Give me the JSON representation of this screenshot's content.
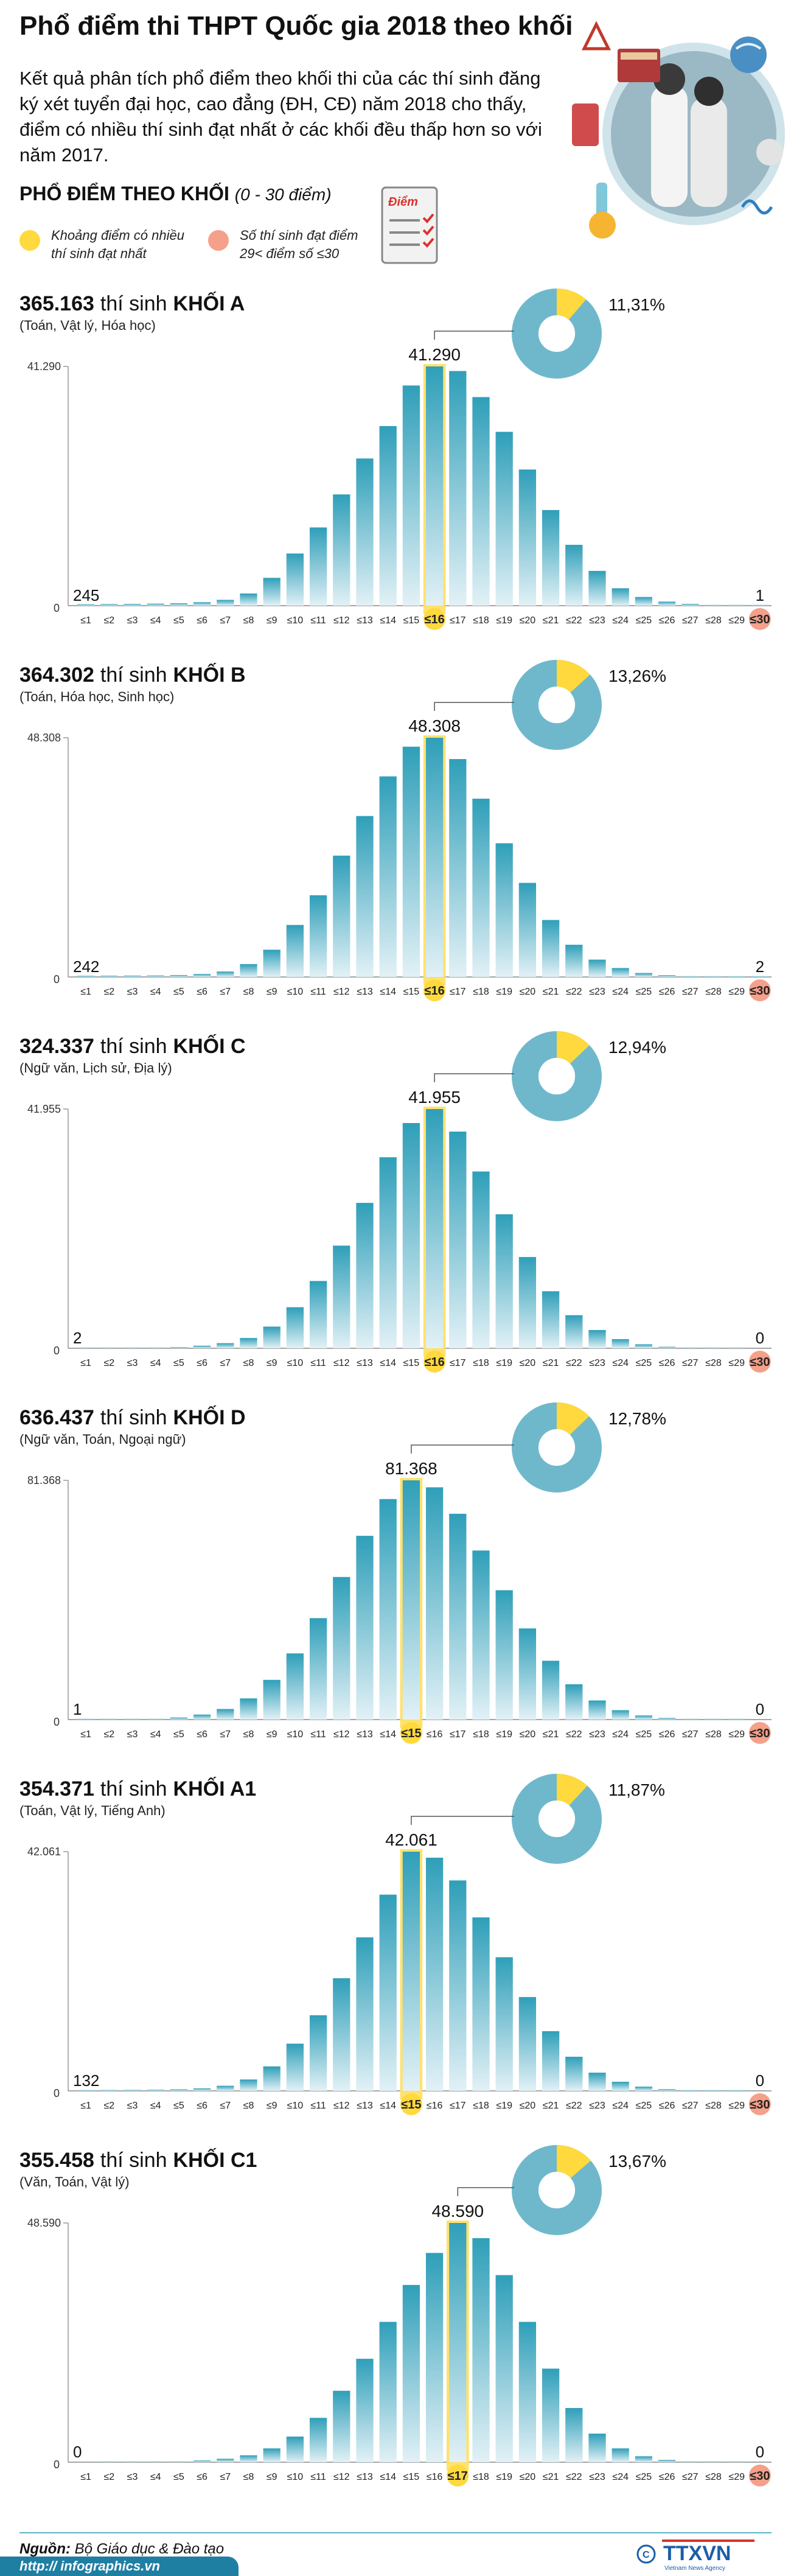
{
  "header": {
    "title": "Phổ điểm thi THPT Quốc gia 2018 theo khối",
    "intro": "Kết quả phân tích phổ điểm theo khối thi của các thí sinh đăng ký xét tuyển đại học, cao đẳng (ĐH, CĐ) năm 2018 cho thấy, điểm có nhiều thí sinh đạt nhất ở các khối đều thấp hơn so với năm 2017.",
    "section_title": "PHỔ ĐIỂM THEO KHỐI",
    "section_range": "(0 - 30 điểm)",
    "doc_icon_label": "Điểm",
    "legend": [
      {
        "label_line1": "Khoảng điểm có nhiều",
        "label_line2": "thí sinh đạt nhất",
        "color": "#ffd93d"
      },
      {
        "label_line1": "Số thí sinh đạt điểm",
        "label_line2": "29< điểm số ≤30",
        "color": "#f4a08a"
      }
    ]
  },
  "colors": {
    "bar_gradient_top": "#2f9fb9",
    "bar_gradient_bottom": "#e2f1f6",
    "highlight": "#ffe066",
    "highlight_dot": "#ffd93d",
    "end_dot": "#f4a08a",
    "donut": "#6fb8cc",
    "donut_slice": "#ffd93d"
  },
  "x_labels": [
    "≤1",
    "≤2",
    "≤3",
    "≤4",
    "≤5",
    "≤6",
    "≤7",
    "≤8",
    "≤9",
    "≤10",
    "≤11",
    "≤12",
    "≤13",
    "≤14",
    "≤15",
    "≤16",
    "≤17",
    "≤18",
    "≤19",
    "≤20",
    "≤21",
    "≤22",
    "≤23",
    "≤24",
    "≤25",
    "≤26",
    "≤27",
    "≤28",
    "≤29",
    "≤30"
  ],
  "chart_data": [
    {
      "type": "bar",
      "total_label": "365.163",
      "total_suffix": "thí sinh",
      "block": "KHỐI A",
      "subjects": "(Toán, Vật lý, Hóa học)",
      "peak_label": "41.290",
      "y_max_label": "41.290",
      "y_min_label": "0",
      "first_label": "245",
      "last_label": "1",
      "share_label": "11,31%",
      "share_value": 0.1131,
      "peak_index": 15,
      "ylim": [
        0,
        41290
      ],
      "values": [
        245,
        280,
        300,
        350,
        420,
        600,
        1000,
        2100,
        4800,
        9000,
        13500,
        19200,
        25400,
        31000,
        38000,
        41290,
        40500,
        36000,
        30000,
        23500,
        16500,
        10500,
        6000,
        3000,
        1500,
        700,
        300,
        120,
        40,
        1
      ]
    },
    {
      "type": "bar",
      "total_label": "364.302",
      "total_suffix": "thí sinh",
      "block": "KHỐI B",
      "subjects": "(Toán, Hóa học, Sinh học)",
      "peak_label": "48.308",
      "y_max_label": "48.308",
      "y_min_label": "0",
      "first_label": "242",
      "last_label": "2",
      "share_label": "13,26%",
      "share_value": 0.1326,
      "peak_index": 15,
      "ylim": [
        0,
        48308
      ],
      "values": [
        242,
        260,
        280,
        300,
        380,
        600,
        1100,
        2600,
        5500,
        10500,
        16500,
        24500,
        32500,
        40500,
        46500,
        48308,
        44000,
        36000,
        27000,
        19000,
        11500,
        6500,
        3500,
        1800,
        800,
        350,
        150,
        60,
        20,
        2
      ]
    },
    {
      "type": "bar",
      "total_label": "324.337",
      "total_suffix": "thí sinh",
      "block": "KHỐI C",
      "subjects": "(Ngữ văn, Lịch sử, Địa lý)",
      "peak_label": "41.955",
      "y_max_label": "41.955",
      "y_min_label": "0",
      "first_label": "2",
      "last_label": "0",
      "share_label": "12,94%",
      "share_value": 0.1294,
      "peak_index": 15,
      "ylim": [
        0,
        41955
      ],
      "values": [
        2,
        10,
        30,
        80,
        200,
        450,
        900,
        1800,
        3800,
        7200,
        11800,
        18000,
        25500,
        33500,
        39500,
        41955,
        38000,
        31000,
        23500,
        16000,
        10000,
        5800,
        3200,
        1600,
        700,
        260,
        90,
        30,
        8,
        0
      ]
    },
    {
      "type": "bar",
      "total_label": "636.437",
      "total_suffix": "thí sinh",
      "block": "KHỐI D",
      "subjects": "(Ngữ văn, Toán, Ngoại ngữ)",
      "peak_label": "81.368",
      "y_max_label": "81.368",
      "y_min_label": "0",
      "first_label": "1",
      "last_label": "0",
      "share_label": "12,78%",
      "share_value": 0.1278,
      "peak_index": 14,
      "ylim": [
        0,
        81368
      ],
      "values": [
        1,
        20,
        80,
        250,
        700,
        1700,
        3600,
        7200,
        13500,
        22500,
        34500,
        48500,
        62500,
        75000,
        81368,
        79000,
        70000,
        57500,
        44000,
        31000,
        20000,
        12000,
        6500,
        3200,
        1400,
        550,
        200,
        70,
        20,
        0
      ]
    },
    {
      "type": "bar",
      "total_label": "354.371",
      "total_suffix": "thí sinh",
      "block": "KHỐI A1",
      "subjects": "(Toán, Vật lý, Tiếng Anh)",
      "peak_label": "42.061",
      "y_max_label": "42.061",
      "y_min_label": "0",
      "first_label": "132",
      "last_label": "0",
      "share_label": "11,87%",
      "share_value": 0.1187,
      "peak_index": 14,
      "ylim": [
        0,
        42061
      ],
      "values": [
        132,
        150,
        170,
        200,
        280,
        450,
        900,
        2000,
        4300,
        8300,
        13300,
        19800,
        27000,
        34500,
        42061,
        41000,
        37000,
        30500,
        23500,
        16500,
        10500,
        6000,
        3200,
        1600,
        750,
        300,
        110,
        40,
        10,
        0
      ]
    },
    {
      "type": "bar",
      "total_label": "355.458",
      "total_suffix": "thí sinh",
      "block": "KHỐI C1",
      "subjects": "(Văn, Toán, Vật lý)",
      "peak_label": "48.590",
      "y_max_label": "48.590",
      "y_min_label": "0",
      "first_label": "0",
      "last_label": "0",
      "share_label": "13,67%",
      "share_value": 0.1367,
      "peak_index": 16,
      "ylim": [
        0,
        48590
      ],
      "values": [
        0,
        5,
        20,
        60,
        150,
        350,
        700,
        1400,
        2800,
        5200,
        9000,
        14500,
        21000,
        28500,
        36000,
        42500,
        48590,
        45500,
        38000,
        28500,
        19000,
        11000,
        5800,
        2800,
        1200,
        450,
        150,
        50,
        10,
        0
      ]
    }
  ],
  "footer": {
    "source_label": "Nguồn:",
    "source_text": "Bộ Giáo dục & Đào tạo",
    "site": "http:// infographics.vn",
    "brand": "TTXVN",
    "brand_sub": "Vietnam News Agency"
  }
}
